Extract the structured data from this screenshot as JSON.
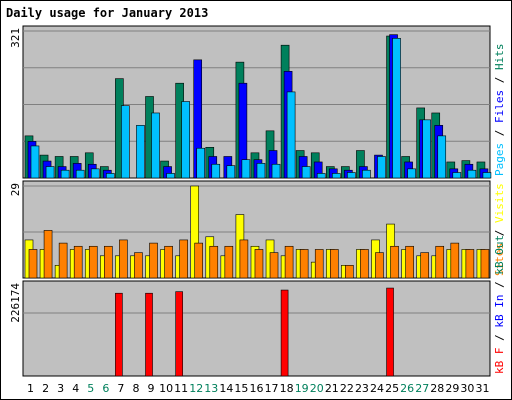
{
  "colors": {
    "hits": "#00805C",
    "files": "#0000FF",
    "pages": "#00C0FF",
    "visits": "#FFFF00",
    "sites": "#FF8000",
    "kb_out": "#00805C",
    "kb_in": "#0000FF",
    "kb_f": "#FF0000",
    "weekday_label": "#000000",
    "weekend_label": "#00805C",
    "panel_bg": "#C0C0C0",
    "title": "#0000FF"
  },
  "chart_data": {
    "type": "bar",
    "title": "Daily usage for January 2013",
    "categories": [
      "1",
      "2",
      "3",
      "4",
      "5",
      "6",
      "7",
      "8",
      "9",
      "10",
      "11",
      "12",
      "13",
      "14",
      "15",
      "16",
      "17",
      "18",
      "19",
      "20",
      "21",
      "22",
      "23",
      "24",
      "25",
      "26",
      "27",
      "28",
      "29",
      "30",
      "31"
    ],
    "weekend_days": [
      "5",
      "6",
      "12",
      "13",
      "19",
      "20",
      "26",
      "27"
    ],
    "panels": [
      {
        "id": "hits_files_pages",
        "ymax_label": "321",
        "ymax": 321,
        "legend": [
          "Pages",
          "Files",
          "Hits"
        ],
        "series": [
          {
            "name": "Hits",
            "values": [
              92,
              50,
              47,
              47,
              55,
              25,
              217,
              0,
              178,
              37,
              207,
              0,
              67,
              0,
              253,
              55,
              103,
              290,
              60,
              55,
              25,
              25,
              60,
              0,
              310,
              47,
              153,
              142,
              35,
              38,
              35
            ]
          },
          {
            "name": "Files",
            "values": [
              80,
              37,
              25,
              32,
              30,
              17,
              0,
              0,
              0,
              25,
              0,
              258,
              47,
              47,
              207,
              40,
              60,
              233,
              47,
              35,
              20,
              17,
              25,
              50,
              313,
              35,
              127,
              115,
              20,
              30,
              20
            ]
          },
          {
            "name": "Pages",
            "values": [
              70,
              25,
              17,
              17,
              20,
              10,
              158,
              115,
              142,
              10,
              167,
              65,
              30,
              27,
              40,
              32,
              30,
              188,
              25,
              10,
              10,
              12,
              17,
              47,
              305,
              20,
              127,
              92,
              12,
              17,
              12
            ]
          }
        ]
      },
      {
        "id": "visits_sites",
        "ymax_label": "29",
        "ymax": 29,
        "legend": [
          "Sites",
          "Visits"
        ],
        "series": [
          {
            "name": "Visits",
            "values": [
              12,
              9,
              4,
              9,
              9,
              7,
              7,
              7,
              7,
              9,
              7,
              29,
              13,
              7,
              20,
              10,
              12,
              7,
              9,
              5,
              9,
              4,
              9,
              12,
              17,
              9,
              7,
              7,
              9,
              9,
              9
            ]
          },
          {
            "name": "Sites",
            "values": [
              9,
              15,
              11,
              10,
              10,
              10,
              12,
              8,
              11,
              10,
              12,
              11,
              10,
              10,
              12,
              9,
              8,
              10,
              9,
              9,
              9,
              4,
              9,
              8,
              10,
              10,
              8,
              10,
              11,
              9,
              9
            ]
          }
        ]
      },
      {
        "id": "kbytes",
        "ymax_label": "226174",
        "ymax": 226174,
        "legend": [
          "kB F",
          "kB In",
          "kB Out"
        ],
        "series": [
          {
            "name": "kB F",
            "values": [
              2,
              2,
              2,
              2,
              2,
              2,
              2,
              2,
              2,
              2,
              2,
              2,
              2,
              2,
              2,
              2,
              2,
              2,
              2,
              2,
              2,
              2,
              2,
              2,
              2,
              2,
              2,
              2,
              2,
              2,
              2
            ]
          },
          {
            "name": "kB In",
            "values": [
              0,
              0,
              0,
              0,
              0,
              0,
              208000,
              0,
              208000,
              0,
              212000,
              0,
              0,
              0,
              0,
              0,
              0,
              216000,
              0,
              0,
              0,
              0,
              0,
              0,
              221000,
              0,
              0,
              0,
              0,
              0,
              0
            ]
          }
        ]
      }
    ]
  }
}
